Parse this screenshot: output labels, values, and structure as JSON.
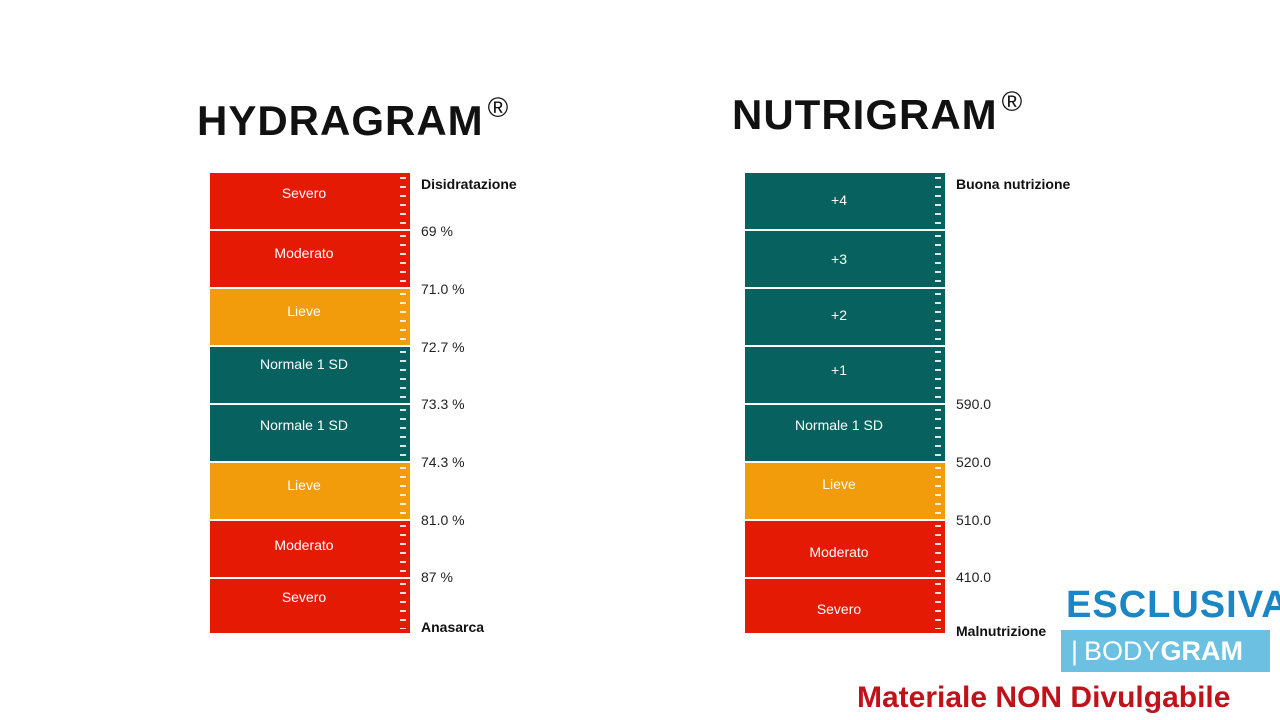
{
  "colors": {
    "red": "#e41a04",
    "orange": "#f29c0b",
    "teal": "#07625f"
  },
  "hydragram": {
    "title": "HYDRAGRAM",
    "mark": "®",
    "segments": [
      {
        "label": "Severo",
        "color": "red"
      },
      {
        "label": "Moderato",
        "color": "red"
      },
      {
        "label": "Lieve",
        "color": "orange"
      },
      {
        "label": "Normale 1 SD",
        "color": "teal"
      },
      {
        "label": "Normale 1 SD",
        "color": "teal"
      },
      {
        "label": "Lieve",
        "color": "orange"
      },
      {
        "label": "Moderato",
        "color": "red"
      },
      {
        "label": "Severo",
        "color": "red"
      }
    ],
    "top_label": "Disidratazione",
    "bottom_label": "Anasarca",
    "thresholds": [
      "69 %",
      "71.0 %",
      "72.7 %",
      "73.3 %",
      "74.3 %",
      "81.0 %",
      "87 %"
    ]
  },
  "nutrigram": {
    "title": "NUTRIGRAM",
    "mark": "®",
    "segments": [
      {
        "label": "+4",
        "color": "teal"
      },
      {
        "label": "+3",
        "color": "teal"
      },
      {
        "label": "+2",
        "color": "teal"
      },
      {
        "label": "+1",
        "color": "teal"
      },
      {
        "label": "Normale 1 SD",
        "color": "teal"
      },
      {
        "label": "Lieve",
        "color": "orange"
      },
      {
        "label": "Moderato",
        "color": "red"
      },
      {
        "label": "Severo",
        "color": "red"
      }
    ],
    "top_label": "Buona nutrizione",
    "bottom_label": "Malnutrizione",
    "thresholds": [
      "590.0",
      "520.0",
      "510.0",
      "410.0"
    ]
  },
  "branding": {
    "esclusiva": "ESCLUSIVA",
    "bar": "|",
    "body": "BODY",
    "gram": "GRAM",
    "footer": "Materiale NON Divulgabile"
  }
}
